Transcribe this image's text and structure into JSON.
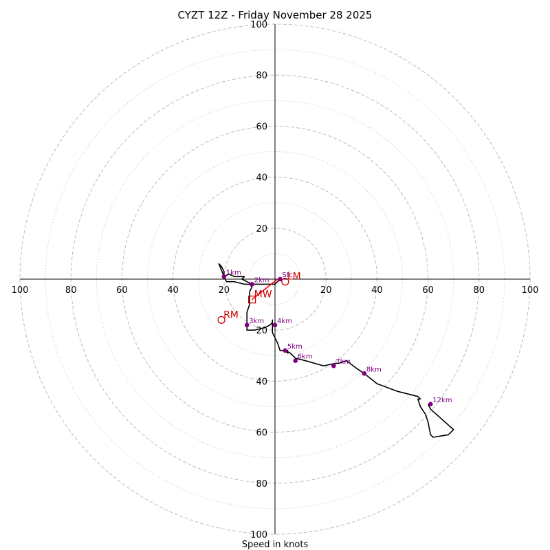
{
  "chart_data": {
    "type": "scatter",
    "title": "CYZT 12Z - Friday November 28 2025",
    "xlabel": "Speed in knots",
    "ylabel": "",
    "xlim": [
      -100,
      100
    ],
    "ylim": [
      -100,
      100
    ],
    "ring_major": [
      20,
      40,
      60,
      80,
      100
    ],
    "ring_minor": [
      10,
      30,
      50,
      70,
      90
    ],
    "tick_labels": {
      "up": [
        "20",
        "40",
        "60",
        "80",
        "100"
      ],
      "down": [
        "20",
        "40",
        "60",
        "80",
        "100"
      ],
      "left": [
        "20",
        "40",
        "60",
        "80",
        "100"
      ],
      "right": [
        "20",
        "40",
        "60",
        "80",
        "100"
      ]
    },
    "hodograph_trace": [
      [
        2,
        0
      ],
      [
        1,
        -1
      ],
      [
        0,
        -2
      ],
      [
        -5,
        -2
      ],
      [
        -9,
        -2
      ],
      [
        -11,
        -1
      ],
      [
        -13,
        0
      ],
      [
        -12,
        1
      ],
      [
        -14,
        1
      ],
      [
        -16,
        1
      ],
      [
        -18,
        2
      ],
      [
        -20,
        1
      ],
      [
        -20,
        3
      ],
      [
        -21,
        5
      ],
      [
        -22,
        6
      ],
      [
        -20,
        1
      ],
      [
        -19,
        -1
      ],
      [
        -16,
        -1
      ],
      [
        -12,
        -2
      ],
      [
        -10,
        -2
      ],
      [
        -9,
        -3
      ],
      [
        -10,
        -5
      ],
      [
        -10,
        -7
      ],
      [
        -10,
        -10
      ],
      [
        -11,
        -13
      ],
      [
        -11,
        -16
      ],
      [
        -11,
        -18
      ],
      [
        -11,
        -20
      ],
      [
        -8,
        -20
      ],
      [
        -4,
        -19
      ],
      [
        -2,
        -18
      ],
      [
        -1,
        -17
      ],
      [
        -1,
        -16
      ],
      [
        -1,
        -18
      ],
      [
        -1,
        -21
      ],
      [
        0,
        -23
      ],
      [
        1,
        -25
      ],
      [
        2,
        -28
      ],
      [
        4,
        -28
      ],
      [
        5,
        -29
      ],
      [
        5,
        -28
      ],
      [
        4,
        -28
      ],
      [
        6,
        -29
      ],
      [
        8,
        -31
      ],
      [
        12,
        -32
      ],
      [
        19,
        -34
      ],
      [
        24,
        -33
      ],
      [
        25,
        -33
      ],
      [
        28,
        -32
      ],
      [
        32,
        -35
      ],
      [
        35,
        -37
      ],
      [
        40,
        -41
      ],
      [
        48,
        -44
      ],
      [
        56,
        -46
      ],
      [
        57,
        -47
      ],
      [
        56,
        -47
      ],
      [
        57,
        -50
      ],
      [
        59,
        -53
      ],
      [
        60,
        -56
      ],
      [
        61,
        -61
      ],
      [
        62,
        -62
      ],
      [
        68,
        -61
      ],
      [
        70,
        -59
      ],
      [
        61,
        -51
      ],
      [
        60,
        -49
      ]
    ],
    "height_markers": [
      {
        "label": "Sfc",
        "u": 2,
        "v": 0
      },
      {
        "label": "1km",
        "u": -20,
        "v": 1
      },
      {
        "label": "2km",
        "u": -9,
        "v": -2
      },
      {
        "label": "3km",
        "u": -11,
        "v": -18
      },
      {
        "label": "4km",
        "u": 0,
        "v": -18
      },
      {
        "label": "5km",
        "u": 4,
        "v": -28
      },
      {
        "label": "6km",
        "u": 8,
        "v": -32
      },
      {
        "label": "7km",
        "u": 23,
        "v": -34
      },
      {
        "label": "8km",
        "u": 35,
        "v": -37
      },
      {
        "label": "12km",
        "u": 61,
        "v": -49
      }
    ],
    "storm_motion": [
      {
        "label": "LM",
        "u": 4,
        "v": -1,
        "symbol": "circle"
      },
      {
        "label": "MW",
        "u": -9,
        "v": -8,
        "symbol": "square"
      },
      {
        "label": "RM",
        "u": -21,
        "v": -16,
        "symbol": "circle"
      }
    ],
    "storm_vector": {
      "from": [
        1,
        0
      ],
      "to": [
        -9,
        -8
      ]
    },
    "colors": {
      "trace": "#000000",
      "marker": "#800080",
      "storm": "#cc0000",
      "storm_vector": "#ff0000",
      "ring": "#bbbbbb",
      "axis": "#000000"
    }
  }
}
